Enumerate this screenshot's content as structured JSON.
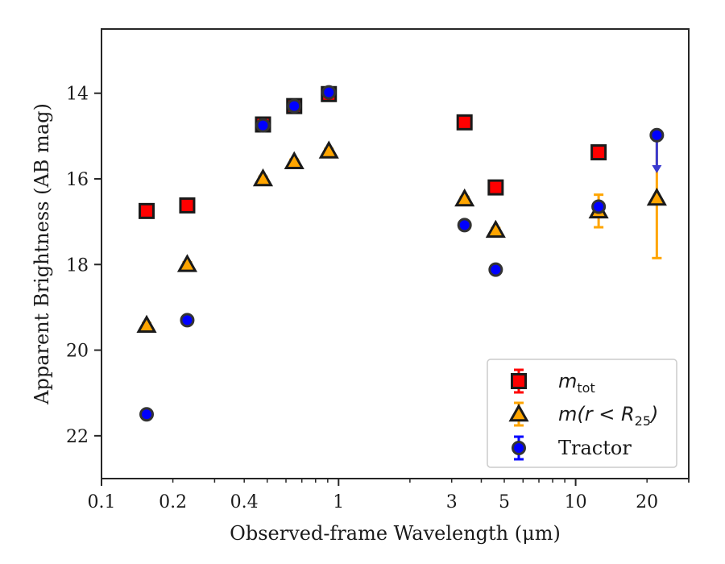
{
  "chart_data": {
    "type": "scatter",
    "xlabel": "Observed-frame Wavelength (μm)",
    "ylabel": "Apparent Brightness (AB mag)",
    "xscale": "log",
    "xlim": [
      0.1,
      30
    ],
    "ylim": [
      23,
      12.5
    ],
    "y_inverted": true,
    "grid": false,
    "legend_position": "lower-right",
    "x_ticks": [
      {
        "value": 0.1,
        "label": "0.1"
      },
      {
        "value": 0.2,
        "label": "0.2"
      },
      {
        "value": 0.4,
        "label": "0.4"
      },
      {
        "value": 1,
        "label": "1"
      },
      {
        "value": 3,
        "label": "3"
      },
      {
        "value": 5,
        "label": "5"
      },
      {
        "value": 10,
        "label": "10"
      },
      {
        "value": 20,
        "label": "20"
      }
    ],
    "y_ticks": [
      {
        "value": 14,
        "label": "14"
      },
      {
        "value": 16,
        "label": "16"
      },
      {
        "value": 18,
        "label": "18"
      },
      {
        "value": 20,
        "label": "20"
      },
      {
        "value": 22,
        "label": "22"
      }
    ],
    "series": [
      {
        "name": "m_tot",
        "legend": {
          "main": "m",
          "sub": "tot"
        },
        "marker": "square",
        "color": "#ff0000",
        "edge_color": "#1a1a1a",
        "x": [
          0.155,
          0.23,
          0.48,
          0.65,
          0.91,
          3.4,
          4.6,
          12.5
        ],
        "y": [
          16.75,
          16.62,
          14.73,
          14.3,
          14.02,
          14.68,
          16.2,
          15.38
        ],
        "yerr": [
          0.05,
          0.05,
          0.08,
          0.05,
          0.05,
          0.05,
          0.05,
          0.05
        ]
      },
      {
        "name": "m(r < R25)",
        "legend": {
          "main": "m(r < R",
          "sub": "25",
          "close": ")"
        },
        "marker": "triangle",
        "color": "#ffa500",
        "edge_color": "#1a1a1a",
        "x": [
          0.155,
          0.23,
          0.48,
          0.65,
          0.91,
          3.4,
          4.6,
          12.5,
          22
        ],
        "y": [
          19.42,
          18.0,
          16.0,
          15.6,
          15.35,
          16.47,
          17.2,
          16.75,
          16.45
        ],
        "yerr": [
          0.05,
          0.05,
          0.05,
          0.05,
          0.05,
          0.05,
          0.05,
          0.38,
          1.4
        ]
      },
      {
        "name": "Tractor",
        "legend": {
          "main": "Tractor"
        },
        "marker": "circle",
        "color": "#0000ff",
        "edge_color": "#333333",
        "x": [
          0.155,
          0.23,
          0.48,
          0.65,
          0.91,
          3.4,
          4.6,
          12.5,
          22
        ],
        "y": [
          21.5,
          19.3,
          14.75,
          14.3,
          13.98,
          17.08,
          18.12,
          16.65,
          14.98
        ],
        "yerr": [
          0.05,
          0.05,
          0.05,
          0.05,
          0.05,
          0.05,
          0.05,
          0.05,
          0.05
        ],
        "upper_limit": [
          false,
          false,
          false,
          false,
          false,
          false,
          false,
          false,
          true
        ],
        "upper_limit_color": "#3a3acf"
      }
    ]
  }
}
